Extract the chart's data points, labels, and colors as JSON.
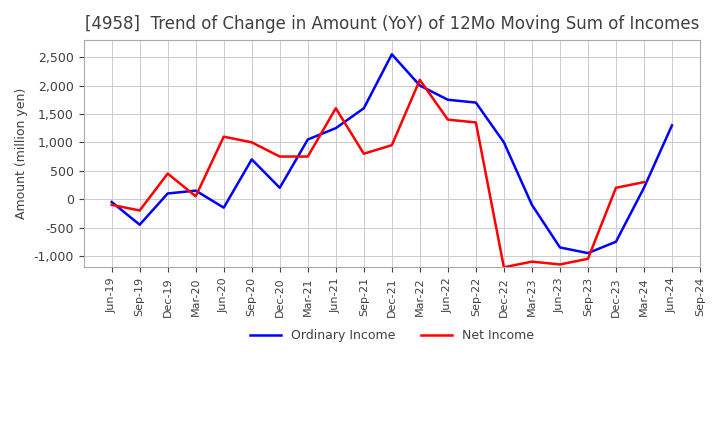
{
  "title": "[4958]  Trend of Change in Amount (YoY) of 12Mo Moving Sum of Incomes",
  "ylabel": "Amount (million yen)",
  "ylim": [
    -1200,
    2800
  ],
  "yticks": [
    -1000,
    -500,
    0,
    500,
    1000,
    1500,
    2000,
    2500
  ],
  "x_labels": [
    "Jun-19",
    "Sep-19",
    "Dec-19",
    "Mar-20",
    "Jun-20",
    "Sep-20",
    "Dec-20",
    "Mar-21",
    "Jun-21",
    "Sep-21",
    "Dec-21",
    "Mar-22",
    "Jun-22",
    "Sep-22",
    "Dec-22",
    "Mar-23",
    "Jun-23",
    "Sep-23",
    "Dec-23",
    "Mar-24",
    "Jun-24",
    "Sep-24"
  ],
  "ordinary_income": [
    -50,
    -450,
    100,
    150,
    -150,
    700,
    200,
    1050,
    1250,
    1600,
    2550,
    2000,
    1750,
    1700,
    1000,
    -100,
    -850,
    -950,
    -750,
    200,
    1300,
    null
  ],
  "net_income": [
    -100,
    -200,
    450,
    50,
    1100,
    1000,
    750,
    750,
    1600,
    800,
    950,
    2100,
    1400,
    1350,
    -1200,
    -1100,
    -1150,
    -1050,
    200,
    300,
    null,
    null
  ],
  "ordinary_color": "#0000ff",
  "net_color": "#ff0000",
  "background_color": "#ffffff",
  "grid_color": "#cccccc",
  "title_color": "#404040",
  "legend_labels": [
    "Ordinary Income",
    "Net Income"
  ]
}
